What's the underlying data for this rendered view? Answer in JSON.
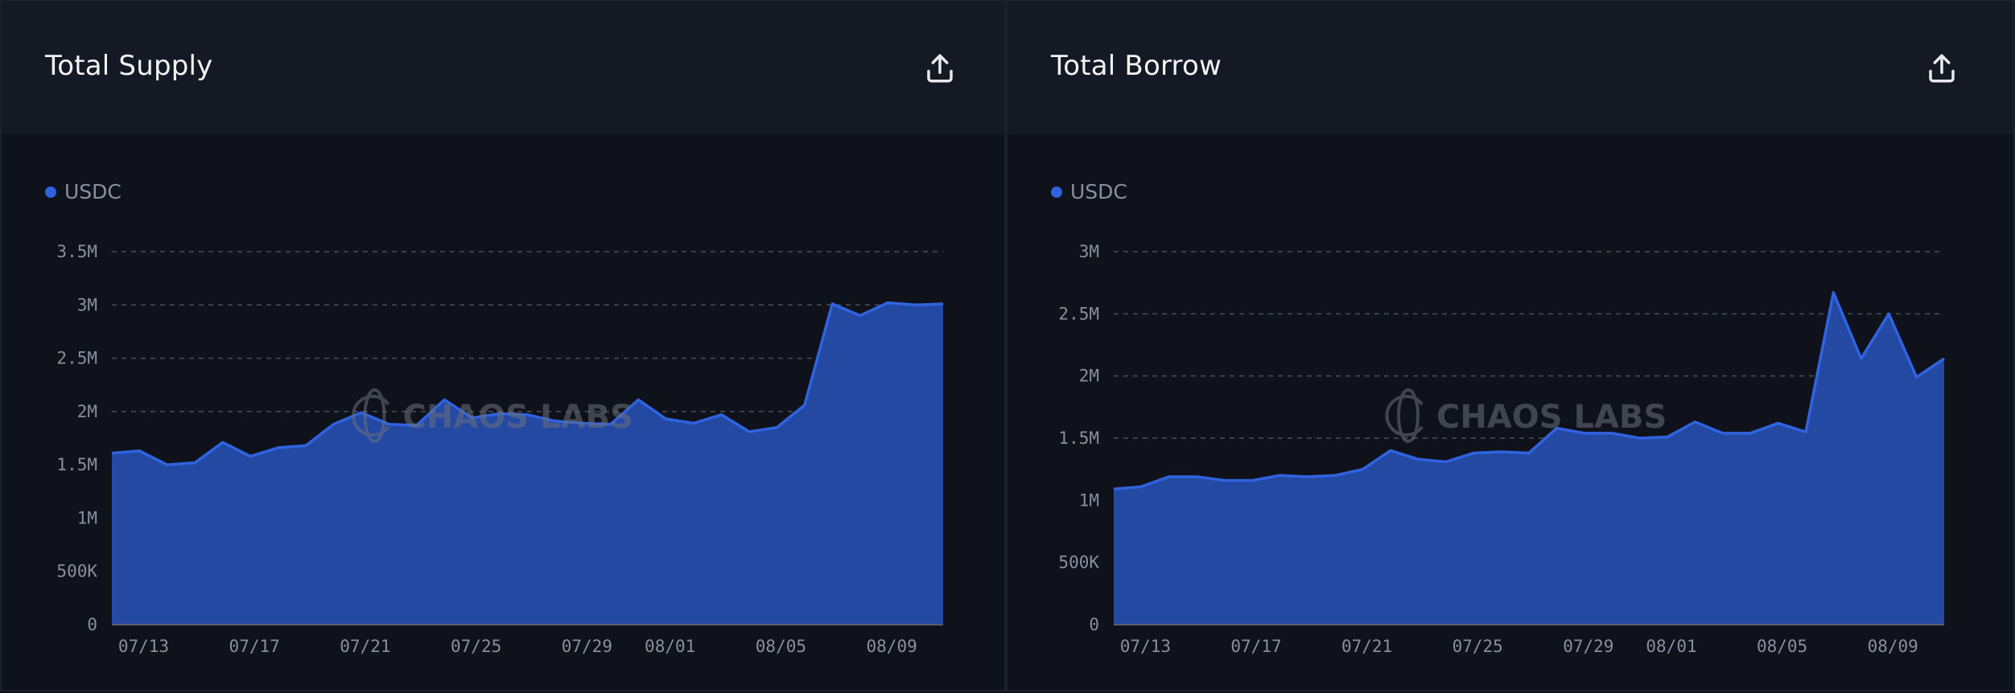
{
  "colors": {
    "line": "#2f63e0",
    "fill": "#2349a3",
    "grid": "#4a4f5c",
    "axis": "#5a5d66"
  },
  "watermark": "CHAOS LABS",
  "panels": [
    {
      "title": "Total Supply",
      "export_icon": "export-icon",
      "legend": "USDC"
    },
    {
      "title": "Total Borrow",
      "export_icon": "export-icon",
      "legend": "USDC"
    }
  ],
  "chart_data": [
    {
      "type": "area",
      "title": "Total Supply",
      "series_name": "USDC",
      "x": [
        "07/12",
        "07/13",
        "07/14",
        "07/15",
        "07/16",
        "07/17",
        "07/18",
        "07/19",
        "07/20",
        "07/21",
        "07/22",
        "07/23",
        "07/24",
        "07/25",
        "07/26",
        "07/27",
        "07/28",
        "07/29",
        "07/30",
        "07/31",
        "08/01",
        "08/02",
        "08/03",
        "08/04",
        "08/05",
        "08/06",
        "08/07",
        "08/08",
        "08/09",
        "08/10",
        "08/11"
      ],
      "values": [
        1.61,
        1.63,
        1.5,
        1.52,
        1.71,
        1.58,
        1.66,
        1.68,
        1.88,
        1.99,
        1.88,
        1.87,
        2.11,
        1.94,
        1.98,
        1.97,
        1.91,
        1.89,
        1.88,
        2.11,
        1.93,
        1.89,
        1.97,
        1.81,
        1.85,
        2.06,
        3.01,
        2.9,
        3.02,
        3.0,
        3.01
      ],
      "unit": "M",
      "ylim": [
        0,
        3.5
      ],
      "yticks": [
        "0",
        "500K",
        "1M",
        "1.5M",
        "2M",
        "2.5M",
        "3M",
        "3.5M"
      ],
      "xticks": [
        "07/13",
        "07/17",
        "07/21",
        "07/25",
        "07/29",
        "08/01",
        "08/05",
        "08/09"
      ],
      "grid": true,
      "legend": "top-left"
    },
    {
      "type": "area",
      "title": "Total Borrow",
      "series_name": "USDC",
      "x": [
        "07/12",
        "07/13",
        "07/14",
        "07/15",
        "07/16",
        "07/17",
        "07/18",
        "07/19",
        "07/20",
        "07/21",
        "07/22",
        "07/23",
        "07/24",
        "07/25",
        "07/26",
        "07/27",
        "07/28",
        "07/29",
        "07/30",
        "07/31",
        "08/01",
        "08/02",
        "08/03",
        "08/04",
        "08/05",
        "08/06",
        "08/07",
        "08/08",
        "08/09",
        "08/10",
        "08/11"
      ],
      "values": [
        1.09,
        1.11,
        1.19,
        1.19,
        1.16,
        1.16,
        1.2,
        1.19,
        1.2,
        1.25,
        1.4,
        1.33,
        1.31,
        1.38,
        1.39,
        1.38,
        1.58,
        1.54,
        1.54,
        1.5,
        1.51,
        1.63,
        1.54,
        1.54,
        1.62,
        1.55,
        2.67,
        2.14,
        2.5,
        1.99,
        2.14
      ],
      "unit": "M",
      "ylim": [
        0,
        3
      ],
      "yticks": [
        "0",
        "500K",
        "1M",
        "1.5M",
        "2M",
        "2.5M",
        "3M"
      ],
      "xticks": [
        "07/13",
        "07/17",
        "07/21",
        "07/25",
        "07/29",
        "08/01",
        "08/05",
        "08/09"
      ],
      "grid": true,
      "legend": "top-left"
    }
  ]
}
